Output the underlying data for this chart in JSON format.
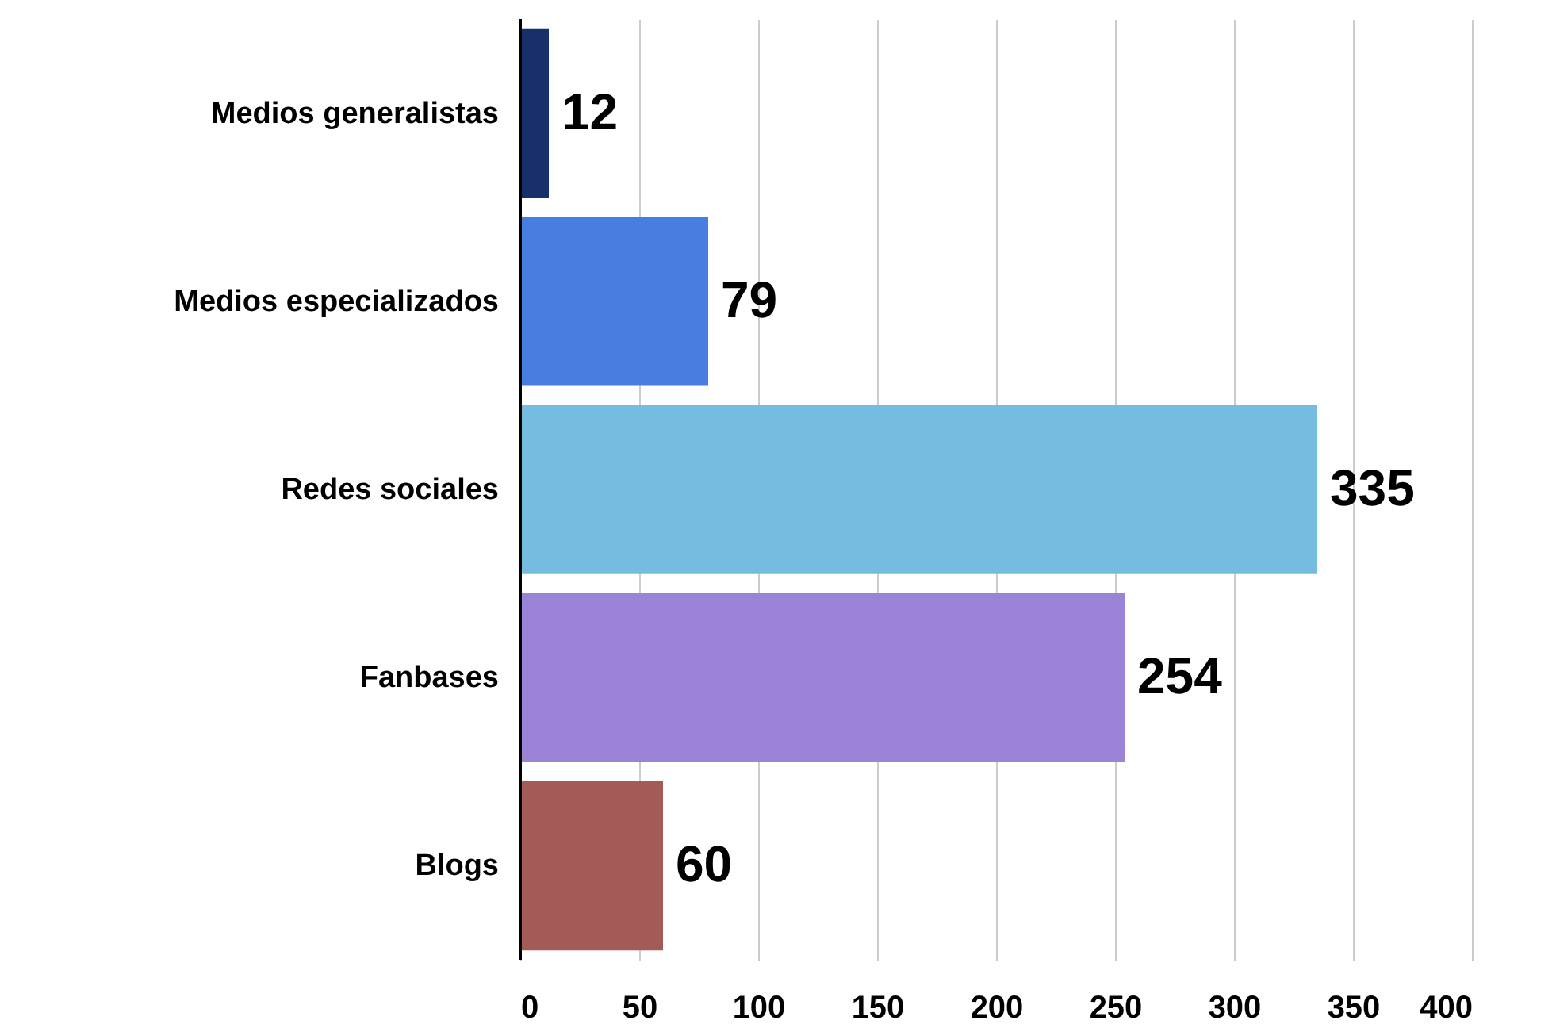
{
  "chart_data": {
    "type": "bar",
    "orientation": "horizontal",
    "categories": [
      "Medios generalistas",
      "Medios especializados",
      "Redes sociales",
      "Fanbases",
      "Blogs"
    ],
    "values": [
      12,
      79,
      335,
      254,
      60
    ],
    "colors": [
      "#17306b",
      "#477ee0",
      "#74bde0",
      "#9b84d8",
      "#a45b58"
    ],
    "xlim": [
      0,
      400
    ],
    "xticks": [
      0,
      50,
      100,
      150,
      200,
      250,
      300,
      350,
      400
    ],
    "grid": "x",
    "data_labels": true
  }
}
